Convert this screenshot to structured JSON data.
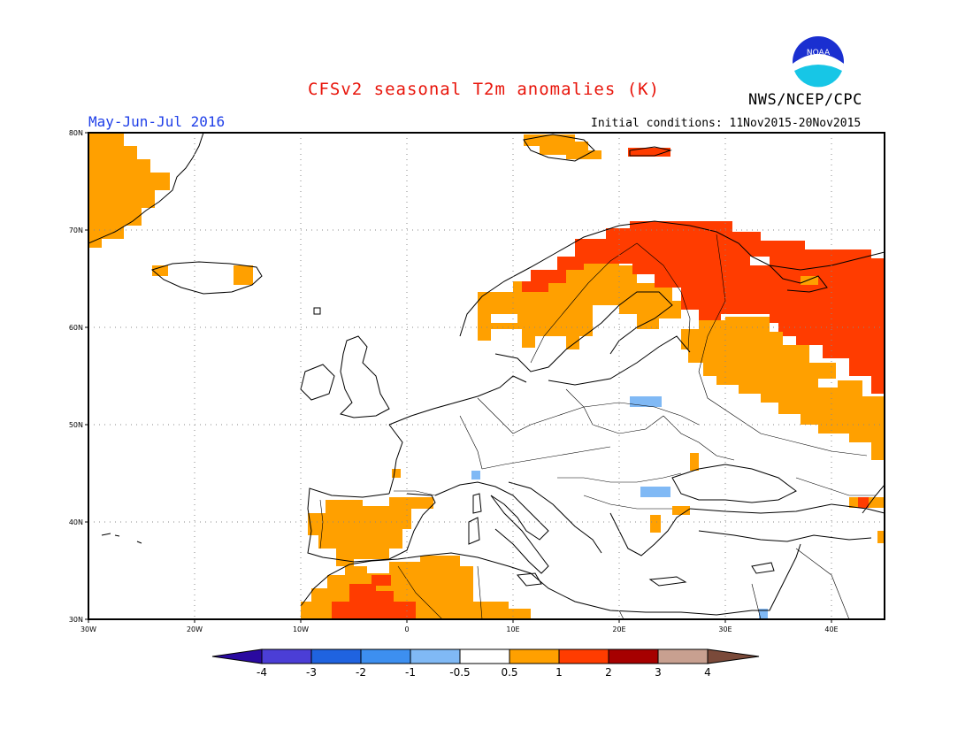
{
  "title": "CFSv2 seasonal T2m anomalies (K)",
  "org": "NWS/NCEP/CPC",
  "logo_text": "NOAA",
  "period": "May-Jun-Jul 2016",
  "initial_conditions": "Initial conditions: 11Nov2015-20Nov2015",
  "map": {
    "lon_range": [
      -30,
      45
    ],
    "lat_range": [
      30,
      80
    ],
    "lat_labels": [
      "80N",
      "70N",
      "60N",
      "50N",
      "40N",
      "30N"
    ],
    "lon_labels": [
      "30W",
      "20W",
      "10W",
      "0",
      "10E",
      "20E",
      "30E",
      "40E"
    ],
    "grid": true
  },
  "colorbar": {
    "levels": [
      "-4",
      "-3",
      "-2",
      "-1",
      "-0.5",
      "0.5",
      "1",
      "2",
      "3",
      "4"
    ],
    "colors": [
      "#2a0aa0",
      "#4b3ed6",
      "#1f63e0",
      "#3d8ff0",
      "#80b9f5",
      "#ffffff",
      "#ffa000",
      "#ff3c00",
      "#a60000",
      "#c8a090",
      "#7a4a3a"
    ]
  },
  "anomaly_regions": [
    {
      "name": "greenland-east",
      "class": "0.5-1",
      "color": "#ffa000"
    },
    {
      "name": "svalbard",
      "class": "0.5-1",
      "color": "#ffa000"
    },
    {
      "name": "iceland",
      "class": "0.5-1",
      "color": "#ffa000"
    },
    {
      "name": "scandinavia-north",
      "class": "1-2",
      "color": "#ff3c00"
    },
    {
      "name": "scandinavia-south",
      "class": "0.5-1",
      "color": "#ffa000"
    },
    {
      "name": "northwest-russia",
      "class": "1-2",
      "color": "#ff3c00"
    },
    {
      "name": "western-russia",
      "class": "0.5-1",
      "color": "#ffa000"
    },
    {
      "name": "iberia",
      "class": "0.5-1",
      "color": "#ffa000"
    },
    {
      "name": "north-africa",
      "class": "0.5-1",
      "color": "#ffa000"
    },
    {
      "name": "morocco-core",
      "class": "1-2",
      "color": "#ff3c00"
    },
    {
      "name": "poland-cool",
      "class": "-0.5 to -1",
      "color": "#80b9f5"
    },
    {
      "name": "balkans-cool",
      "class": "-0.5 to -1",
      "color": "#80b9f5"
    }
  ]
}
